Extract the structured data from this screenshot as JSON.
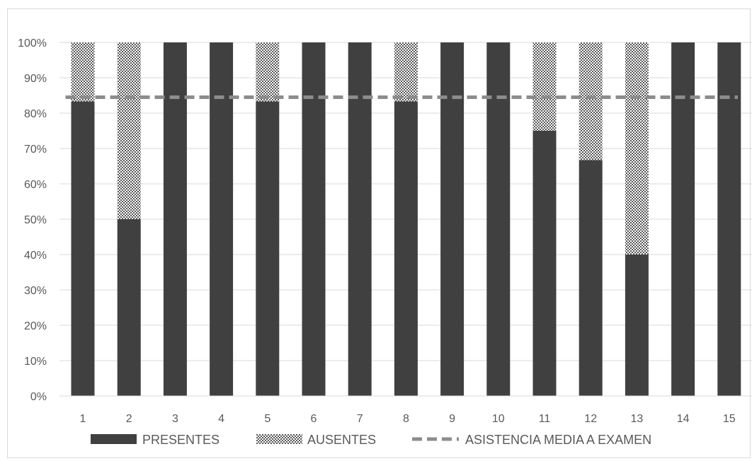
{
  "chart_data": {
    "type": "bar",
    "stacked": true,
    "percent_stacked": true,
    "categories": [
      "1",
      "2",
      "3",
      "4",
      "5",
      "6",
      "7",
      "8",
      "9",
      "10",
      "11",
      "12",
      "13",
      "14",
      "15"
    ],
    "series": [
      {
        "name": "PRESENTES",
        "color": "#404040",
        "pattern": "solid",
        "values": [
          83.3,
          50,
          100,
          100,
          83.3,
          100,
          100,
          83.3,
          100,
          100,
          75,
          66.7,
          40,
          100,
          100
        ]
      },
      {
        "name": "AUSENTES",
        "color": "#595959",
        "pattern": "checkered",
        "values": [
          16.7,
          50,
          0,
          0,
          16.7,
          0,
          0,
          16.7,
          0,
          0,
          25,
          33.3,
          60,
          0,
          0
        ]
      }
    ],
    "reference_line": {
      "name": "ASISTENCIA MEDIA A EXAMEN",
      "value": 84.5,
      "style": "dashed",
      "color": "#8c8c8c"
    },
    "y_ticks": [
      "0%",
      "10%",
      "20%",
      "30%",
      "40%",
      "50%",
      "60%",
      "70%",
      "80%",
      "90%",
      "100%"
    ],
    "ylim": [
      0,
      100
    ],
    "grid": true,
    "legend_position": "bottom"
  }
}
